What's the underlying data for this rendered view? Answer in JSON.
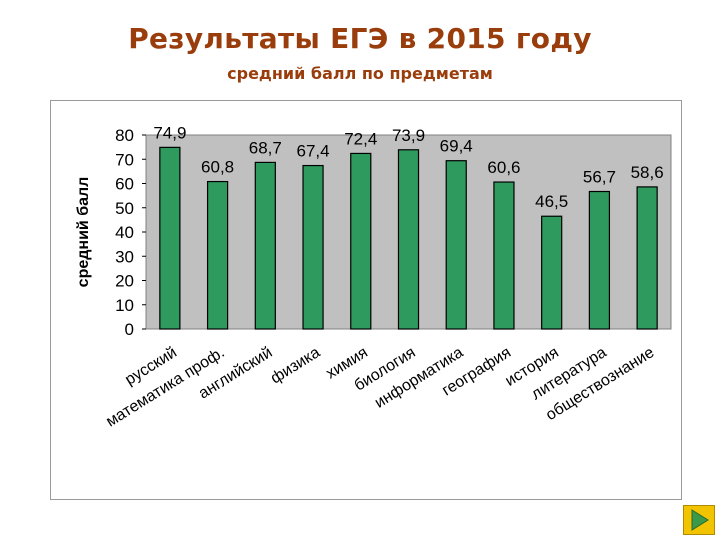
{
  "header": {
    "title": "Результаты ЕГЭ в 2015 году",
    "subtitle": "средний балл по предметам"
  },
  "chart_data": {
    "type": "bar",
    "title": "",
    "xlabel": "",
    "ylabel": "средний балл",
    "ylim": [
      0,
      80
    ],
    "yticks": [
      0,
      10,
      20,
      30,
      40,
      50,
      60,
      70,
      80
    ],
    "grid": false,
    "legend": "none",
    "categories": [
      "русский",
      "математика проф.",
      "английский",
      "физика",
      "химия",
      "биология",
      "информатика",
      "география",
      "история",
      "литература",
      "обществознание"
    ],
    "values": [
      74.9,
      60.8,
      68.7,
      67.4,
      72.4,
      73.9,
      69.4,
      60.6,
      46.5,
      56.7,
      58.6
    ],
    "data_labels": [
      "74,9",
      "60,8",
      "68,7",
      "67,4",
      "72,4",
      "73,9",
      "69,4",
      "60,6",
      "46,5",
      "56,7",
      "58,6"
    ],
    "colors": {
      "bar": "#2e9a5e",
      "plot_background": "#c0c0c0"
    }
  },
  "nav": {
    "icon": "triangle-right-icon",
    "background": "#f2c400",
    "arrow": "#3a9a4a"
  }
}
